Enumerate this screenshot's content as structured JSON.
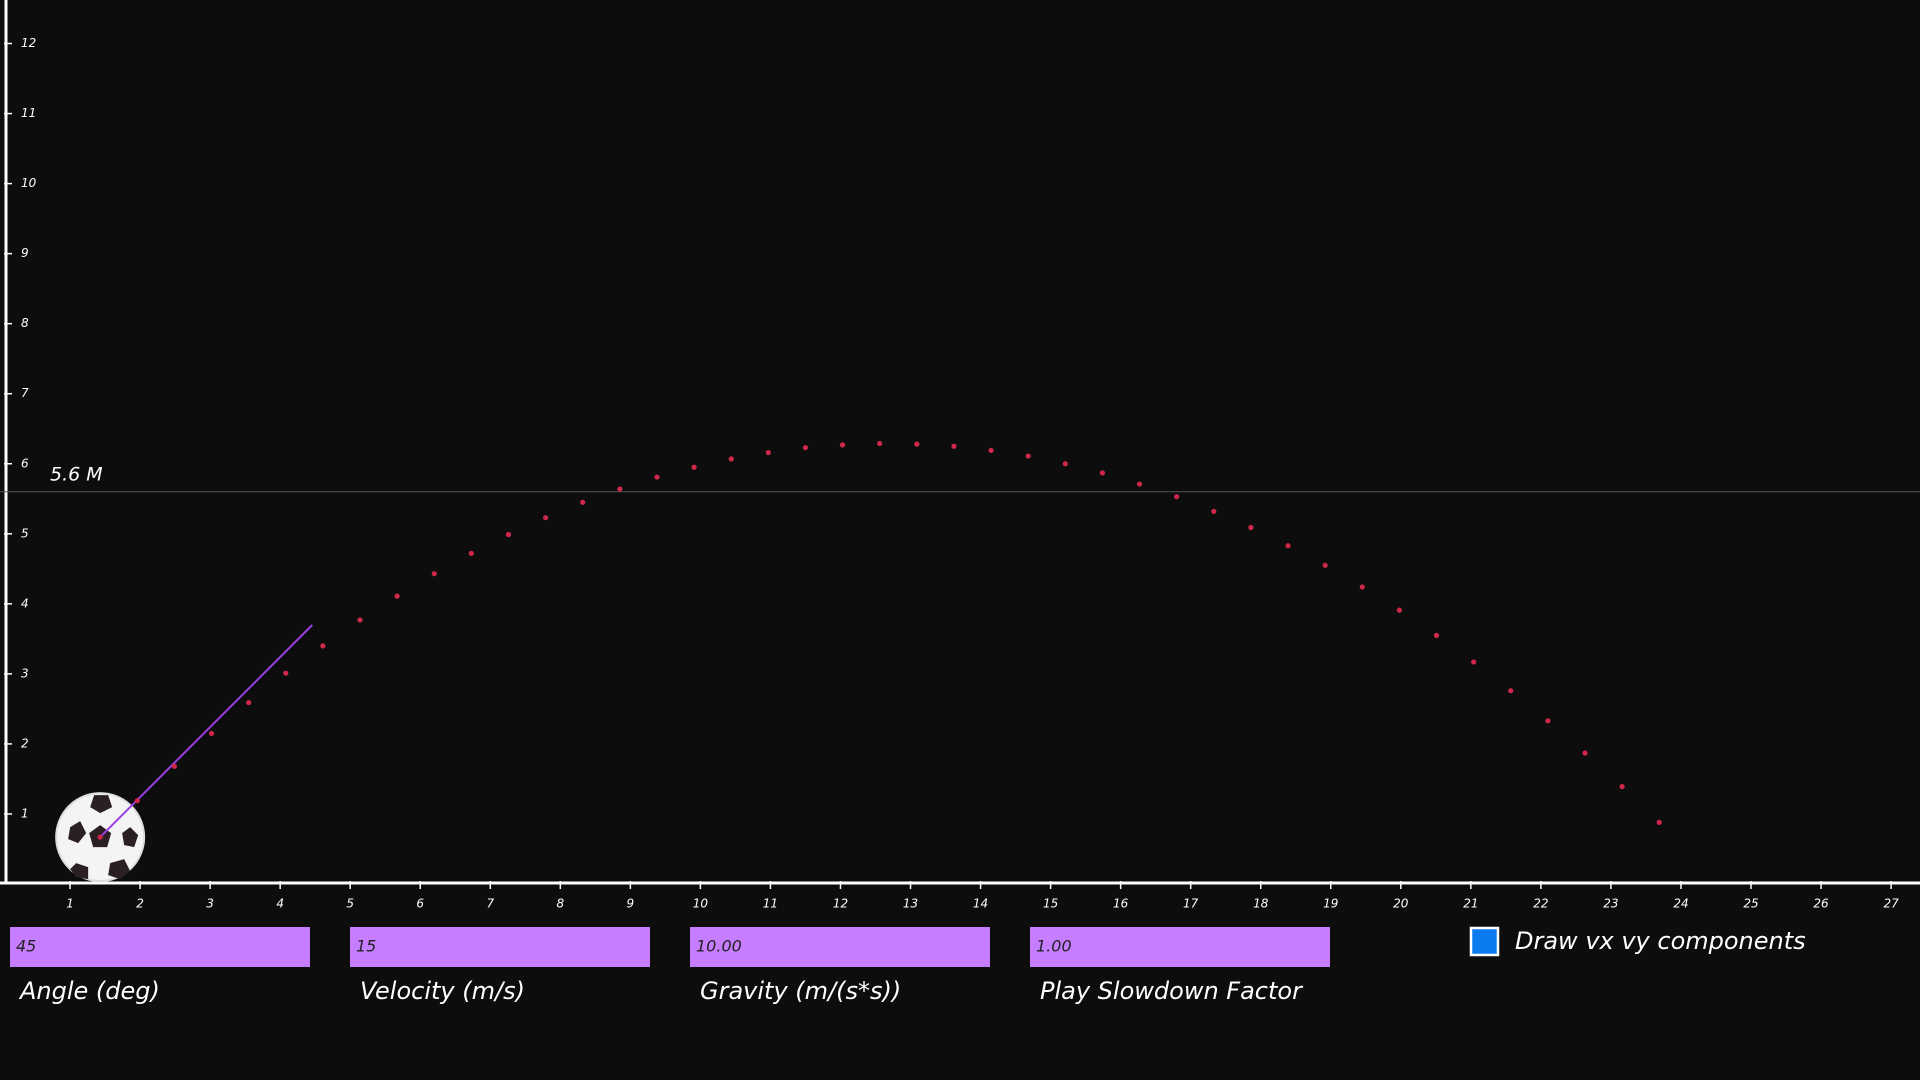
{
  "plot": {
    "xticks": [
      1,
      2,
      3,
      4,
      5,
      6,
      7,
      8,
      9,
      10,
      11,
      12,
      13,
      14,
      15,
      16,
      17,
      18,
      19,
      20,
      21,
      22,
      23,
      24,
      25,
      26,
      27
    ],
    "yticks": [
      1,
      2,
      3,
      4,
      5,
      6,
      7,
      8,
      9,
      10,
      11,
      12
    ],
    "max_height": {
      "value": 5.6,
      "label": "5.6 M"
    },
    "trajectory": {
      "x": [
        1.43,
        1.96,
        2.49,
        3.02,
        3.55,
        4.08,
        4.61,
        5.14,
        5.67,
        6.2,
        6.73,
        7.26,
        7.79,
        8.32,
        8.85,
        9.38,
        9.91,
        10.44,
        10.97,
        11.5,
        12.03,
        12.56,
        13.09,
        13.62,
        14.15,
        14.68,
        15.21,
        15.74,
        16.27,
        16.8,
        17.33,
        17.86,
        18.39,
        18.92,
        19.45,
        19.98,
        20.51,
        21.04,
        21.57,
        22.1,
        22.63,
        23.16,
        23.69
      ],
      "y": [
        0.67,
        1.19,
        1.68,
        2.15,
        2.59,
        3.01,
        3.4,
        3.77,
        4.11,
        4.43,
        4.72,
        4.99,
        5.23,
        5.45,
        5.64,
        5.81,
        5.95,
        6.07,
        6.16,
        6.23,
        6.27,
        6.29,
        6.28,
        6.25,
        6.19,
        6.11,
        6.0,
        5.87,
        5.71,
        5.53,
        5.32,
        5.09,
        4.83,
        4.55,
        4.24,
        3.91,
        3.55,
        3.17,
        2.76,
        2.33,
        1.87,
        1.39,
        0.88
      ]
    }
  },
  "controls": [
    {
      "label": "Angle (deg)",
      "value": "45"
    },
    {
      "label": "Velocity (m/s)",
      "value": "15"
    },
    {
      "label": "Gravity (m/(s*s))",
      "value": "10.00"
    },
    {
      "label": "Play Slowdown Factor",
      "value": "1.00"
    }
  ],
  "checkbox": {
    "label": "Draw vx vy components",
    "checked": true
  }
}
